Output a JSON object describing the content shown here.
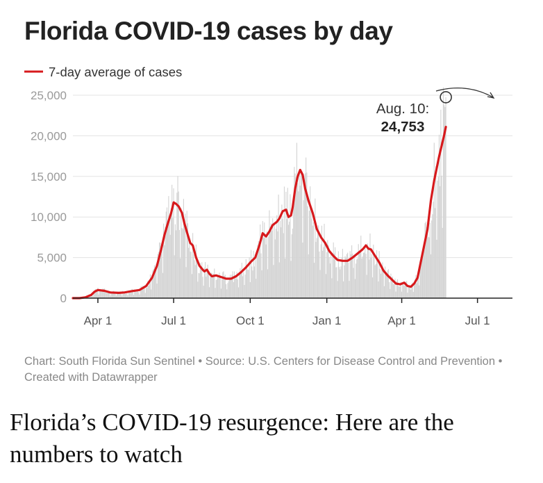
{
  "chart_data": {
    "type": "bar+line",
    "title": "Florida COVID-19 cases by day",
    "legend": {
      "position": "top-left",
      "entries": [
        {
          "label": "7-day average of cases",
          "color": "#d7191c"
        }
      ]
    },
    "y_ticks": [
      {
        "value": 0,
        "label": "0"
      },
      {
        "value": 5000,
        "label": "5,000"
      },
      {
        "value": 10000,
        "label": "10,000"
      },
      {
        "value": 15000,
        "label": "15,000"
      },
      {
        "value": 20000,
        "label": "20,000"
      },
      {
        "value": 25000,
        "label": "25,000"
      }
    ],
    "ylim": [
      0,
      25000
    ],
    "x_domain_days": [
      0,
      528
    ],
    "x_ticks": [
      {
        "day": 30,
        "label": "Apr 1"
      },
      {
        "day": 121,
        "label": "Jul 1"
      },
      {
        "day": 213,
        "label": "Oct 1"
      },
      {
        "day": 305,
        "label": "Jan 1"
      },
      {
        "day": 395,
        "label": "Apr 1"
      },
      {
        "day": 486,
        "label": "Jul 1"
      }
    ],
    "grid": true,
    "series": [
      {
        "name": "7-day average of cases",
        "kind": "line",
        "color": "#d7191c",
        "points": [
          [
            0,
            0
          ],
          [
            8,
            0
          ],
          [
            15,
            100
          ],
          [
            22,
            400
          ],
          [
            26,
            800
          ],
          [
            30,
            1000
          ],
          [
            38,
            900
          ],
          [
            45,
            700
          ],
          [
            55,
            650
          ],
          [
            62,
            700
          ],
          [
            70,
            850
          ],
          [
            80,
            1000
          ],
          [
            88,
            1500
          ],
          [
            95,
            2500
          ],
          [
            101,
            4000
          ],
          [
            106,
            6000
          ],
          [
            110,
            7800
          ],
          [
            114,
            9200
          ],
          [
            118,
            10500
          ],
          [
            121,
            11800
          ],
          [
            124,
            11600
          ],
          [
            127,
            11300
          ],
          [
            131,
            10500
          ],
          [
            134,
            9200
          ],
          [
            138,
            7800
          ],
          [
            141,
            6800
          ],
          [
            144,
            6500
          ],
          [
            148,
            5000
          ],
          [
            152,
            4000
          ],
          [
            156,
            3500
          ],
          [
            158,
            3300
          ],
          [
            161,
            3500
          ],
          [
            164,
            3000
          ],
          [
            167,
            2700
          ],
          [
            172,
            2800
          ],
          [
            178,
            2600
          ],
          [
            184,
            2400
          ],
          [
            190,
            2400
          ],
          [
            196,
            2700
          ],
          [
            202,
            3200
          ],
          [
            208,
            3800
          ],
          [
            214,
            4500
          ],
          [
            219,
            5000
          ],
          [
            224,
            6500
          ],
          [
            228,
            8000
          ],
          [
            232,
            7600
          ],
          [
            236,
            8200
          ],
          [
            240,
            9000
          ],
          [
            245,
            9400
          ],
          [
            248,
            9800
          ],
          [
            252,
            10700
          ],
          [
            256,
            10900
          ],
          [
            259,
            10000
          ],
          [
            262,
            10200
          ],
          [
            264,
            11200
          ],
          [
            267,
            13500
          ],
          [
            270,
            15000
          ],
          [
            273,
            15800
          ],
          [
            276,
            15200
          ],
          [
            279,
            13500
          ],
          [
            283,
            12000
          ],
          [
            288,
            10500
          ],
          [
            293,
            8500
          ],
          [
            298,
            7500
          ],
          [
            303,
            6800
          ],
          [
            308,
            5800
          ],
          [
            313,
            5200
          ],
          [
            318,
            4700
          ],
          [
            324,
            4600
          ],
          [
            330,
            4600
          ],
          [
            336,
            5000
          ],
          [
            342,
            5500
          ],
          [
            348,
            6000
          ],
          [
            352,
            6500
          ],
          [
            355,
            6100
          ],
          [
            358,
            6000
          ],
          [
            363,
            5200
          ],
          [
            368,
            4400
          ],
          [
            373,
            3400
          ],
          [
            378,
            2800
          ],
          [
            383,
            2300
          ],
          [
            388,
            1800
          ],
          [
            393,
            1700
          ],
          [
            398,
            1900
          ],
          [
            402,
            1500
          ],
          [
            406,
            1400
          ],
          [
            410,
            1800
          ],
          [
            414,
            2500
          ],
          [
            418,
            4500
          ],
          [
            422,
            6500
          ],
          [
            426,
            8500
          ],
          [
            430,
            12000
          ],
          [
            434,
            14500
          ],
          [
            437,
            16000
          ],
          [
            440,
            17500
          ],
          [
            443,
            18800
          ],
          [
            446,
            20100
          ],
          [
            448,
            21100
          ]
        ]
      },
      {
        "name": "Daily cases",
        "kind": "bars",
        "color": "#d0d0d0",
        "note": "one bar per day, drawn around the 7-day average"
      }
    ],
    "annotations": [
      {
        "label_line1": "Aug. 10:",
        "label_line2": "24,753",
        "day": 448,
        "value": 24753
      }
    ]
  },
  "footer": "Chart: South Florida Sun Sentinel • Source: U.S. Centers for Disease Control and Prevention • Created with Datawrapper",
  "headline": "Florida’s COVID-19 resurgence: Here are the numbers to watch"
}
